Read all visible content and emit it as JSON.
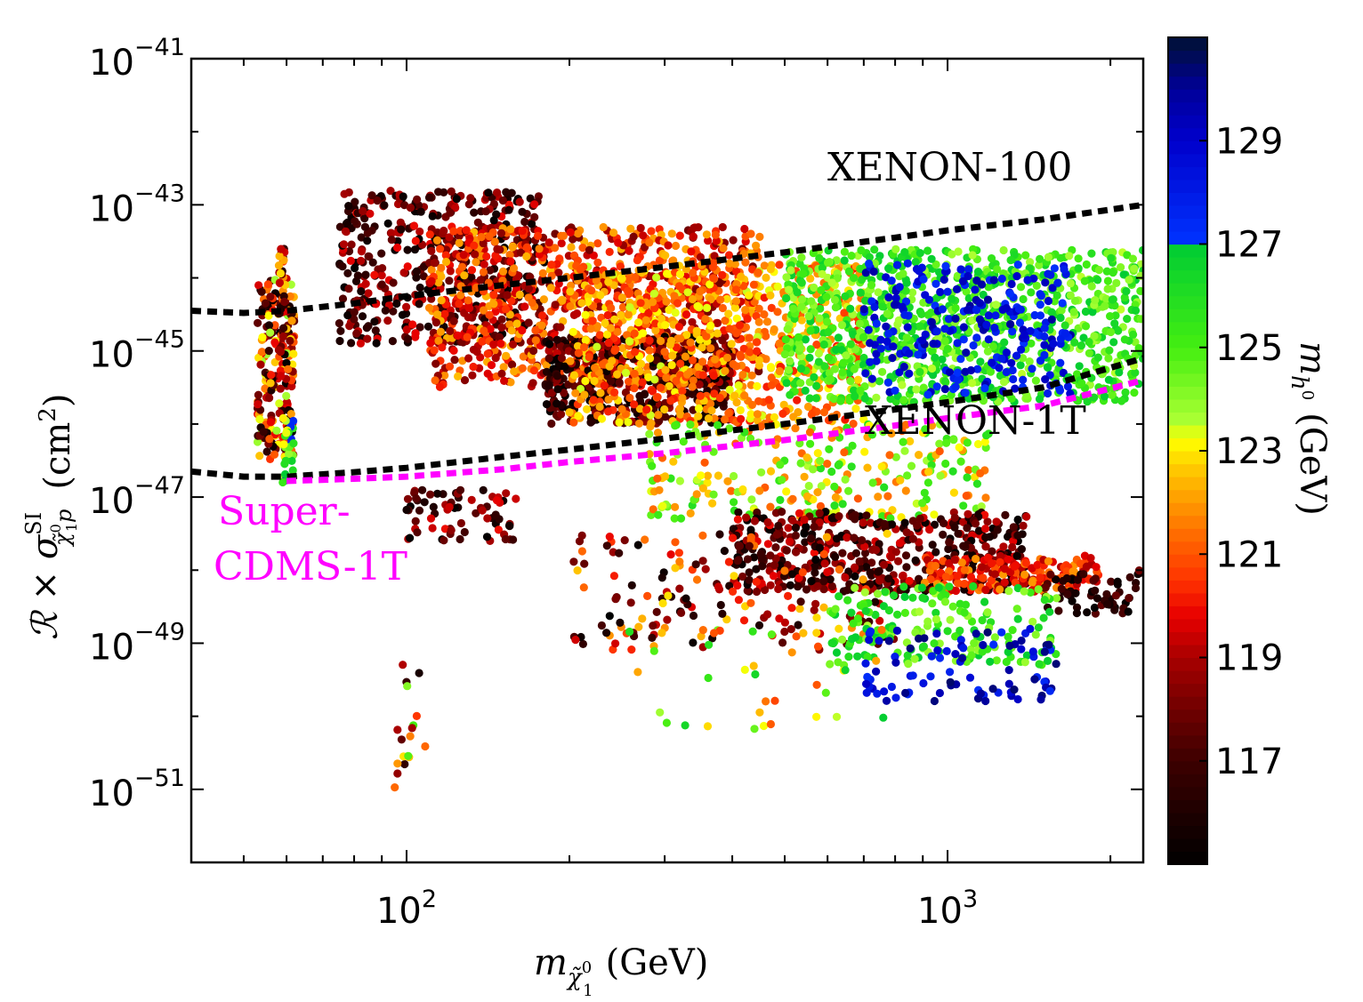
{
  "chart_data": {
    "type": "scatter",
    "title": "",
    "xlabel": {
      "main": "m",
      "sub": "χ̃",
      "sub_sup": "0",
      "sub_sub": "1",
      "unit": "(GeV)"
    },
    "ylabel": {
      "prefix": "ℛ × σ",
      "sup": "SI",
      "sub": "χ̃",
      "sub_sup": "0",
      "sub_sub": "1",
      "sub_tail": "p",
      "unit": "(cm",
      "unit_exp": "2",
      "unit_close": ")"
    },
    "x_scale": "log",
    "y_scale": "log",
    "xlim": [
      40,
      2300
    ],
    "ylim": [
      1e-52,
      1e-41
    ],
    "x_ticks": [
      {
        "base": "10",
        "exp": "2",
        "value": 100
      },
      {
        "base": "10",
        "exp": "3",
        "value": 1000
      }
    ],
    "y_ticks": [
      {
        "base": "10",
        "exp": "−41",
        "value": -41
      },
      {
        "base": "10",
        "exp": "−43",
        "value": -43
      },
      {
        "base": "10",
        "exp": "−45",
        "value": -45
      },
      {
        "base": "10",
        "exp": "−47",
        "value": -47
      },
      {
        "base": "10",
        "exp": "−49",
        "value": -49
      },
      {
        "base": "10",
        "exp": "−51",
        "value": -51
      }
    ],
    "colorbar": {
      "label": {
        "main": "m",
        "sub": "h",
        "sub_sup": "0",
        "unit": "(GeV)"
      },
      "range": [
        115,
        131
      ],
      "ticks": [
        "117",
        "119",
        "121",
        "123",
        "125",
        "127",
        "129"
      ],
      "tick_values": [
        117,
        119,
        121,
        123,
        125,
        127,
        129
      ],
      "colormap": [
        [
          115,
          "#000000"
        ],
        [
          116,
          "#1e0000"
        ],
        [
          117,
          "#3d0000"
        ],
        [
          118,
          "#700000"
        ],
        [
          119,
          "#a80000"
        ],
        [
          119.8,
          "#e80000"
        ],
        [
          120.5,
          "#ff3300"
        ],
        [
          121.3,
          "#ff6600"
        ],
        [
          122,
          "#ff9900"
        ],
        [
          122.7,
          "#ffcc00"
        ],
        [
          123.2,
          "#ffff00"
        ],
        [
          123.6,
          "#aaff33"
        ],
        [
          125,
          "#44ee11"
        ],
        [
          127,
          "#00cc33"
        ],
        [
          127.01,
          "#0033ff"
        ],
        [
          129,
          "#0000cc"
        ],
        [
          130,
          "#000099"
        ],
        [
          131,
          "#001133"
        ]
      ]
    },
    "series": [
      {
        "name": "XENON-100",
        "style": "dashed",
        "color": "#000000",
        "x": [
          40,
          50,
          60,
          80,
          100,
          150,
          200,
          300,
          500,
          800,
          1000,
          1500,
          2300
        ],
        "y": [
          -44.45,
          -44.48,
          -44.45,
          -44.35,
          -44.25,
          -44.1,
          -44.0,
          -43.85,
          -43.65,
          -43.45,
          -43.35,
          -43.2,
          -43.0
        ]
      },
      {
        "name": "XENON-1T",
        "style": "dashed",
        "color": "#000000",
        "x": [
          40,
          50,
          60,
          80,
          100,
          150,
          200,
          300,
          500,
          800,
          1000,
          1500,
          2300
        ],
        "y": [
          -46.65,
          -46.72,
          -46.72,
          -46.66,
          -46.6,
          -46.45,
          -46.35,
          -46.2,
          -46.0,
          -45.8,
          -45.7,
          -45.5,
          -45.1
        ]
      },
      {
        "name": "Super-CDMS-1T",
        "style": "dashed",
        "color": "#ff00ff",
        "x": [
          60,
          80,
          100,
          150,
          200,
          300,
          500,
          800,
          1000,
          1500,
          2300
        ],
        "y": [
          -46.78,
          -46.75,
          -46.72,
          -46.62,
          -46.52,
          -46.4,
          -46.22,
          -46.02,
          -45.92,
          -45.75,
          -45.4
        ]
      }
    ],
    "clusters": [
      {
        "xr": [
          53,
          62
        ],
        "yr": [
          -46.5,
          -44.0
        ],
        "mh": [
          115,
          124
        ],
        "n": 220
      },
      {
        "xr": [
          59,
          62
        ],
        "yr": [
          -46.8,
          -45.8
        ],
        "mh": [
          123,
          128
        ],
        "n": 30
      },
      {
        "xr": [
          58,
          60
        ],
        "yr": [
          -44.5,
          -43.5
        ],
        "mh": [
          116,
          123
        ],
        "n": 25
      },
      {
        "xr": [
          75,
          180
        ],
        "yr": [
          -44.9,
          -42.8
        ],
        "mh": [
          115,
          120
        ],
        "n": 500
      },
      {
        "xr": [
          110,
          450
        ],
        "yr": [
          -45.5,
          -43.3
        ],
        "mh": [
          118,
          122.5
        ],
        "n": 900
      },
      {
        "xr": [
          180,
          400
        ],
        "yr": [
          -46.0,
          -44.8
        ],
        "mh": [
          115,
          119
        ],
        "n": 400
      },
      {
        "xr": [
          200,
          700
        ],
        "yr": [
          -46.0,
          -43.8
        ],
        "mh": [
          120,
          123.5
        ],
        "n": 700
      },
      {
        "xr": [
          500,
          2300
        ],
        "yr": [
          -45.7,
          -43.6
        ],
        "mh": [
          123.5,
          127
        ],
        "n": 1000
      },
      {
        "xr": [
          700,
          1700
        ],
        "yr": [
          -45.6,
          -43.8
        ],
        "mh": [
          127,
          130
        ],
        "n": 250
      },
      {
        "xr": [
          280,
          1200
        ],
        "yr": [
          -47.3,
          -46.0
        ],
        "mh": [
          121,
          126
        ],
        "n": 260
      },
      {
        "xr": [
          100,
          160
        ],
        "yr": [
          -47.6,
          -46.9
        ],
        "mh": [
          115,
          120
        ],
        "n": 70
      },
      {
        "xr": [
          400,
          1400
        ],
        "yr": [
          -48.3,
          -47.2
        ],
        "mh": [
          115,
          120
        ],
        "n": 500
      },
      {
        "xr": [
          900,
          1900
        ],
        "yr": [
          -48.3,
          -47.8
        ],
        "mh": [
          119,
          122
        ],
        "n": 180
      },
      {
        "xr": [
          1500,
          2300
        ],
        "yr": [
          -48.6,
          -48.0
        ],
        "mh": [
          115,
          118
        ],
        "n": 60
      },
      {
        "xr": [
          200,
          800
        ],
        "yr": [
          -49.1,
          -47.5
        ],
        "mh": [
          115,
          123
        ],
        "n": 180
      },
      {
        "xr": [
          600,
          1600
        ],
        "yr": [
          -49.3,
          -48.2
        ],
        "mh": [
          123.5,
          127
        ],
        "n": 180
      },
      {
        "xr": [
          700,
          1600
        ],
        "yr": [
          -49.8,
          -48.8
        ],
        "mh": [
          127.2,
          130.5
        ],
        "n": 90
      },
      {
        "xr": [
          250,
          800
        ],
        "yr": [
          -50.2,
          -48.8
        ],
        "mh": [
          120,
          127
        ],
        "n": 35
      },
      {
        "xr": [
          95,
          110
        ],
        "yr": [
          -51.0,
          -49.2
        ],
        "mh": [
          115,
          126
        ],
        "n": 18
      }
    ],
    "annotations": [
      {
        "text": "XENON-100",
        "color": "#000000"
      },
      {
        "text": "XENON-1T",
        "color": "#000000"
      },
      {
        "text": "Super-",
        "color": "#ff00ff"
      },
      {
        "text": "CDMS-1T",
        "color": "#ff00ff"
      }
    ]
  }
}
